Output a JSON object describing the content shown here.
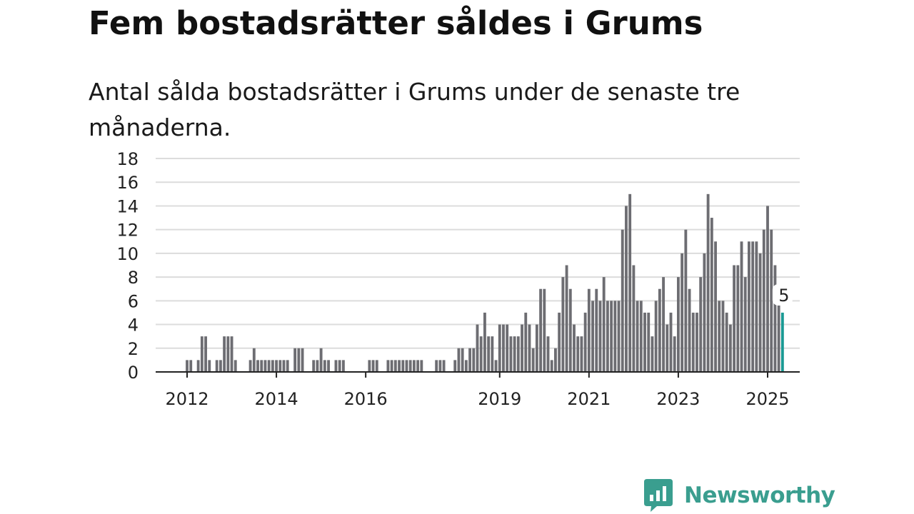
{
  "title": "Fem bostadsrätter såldes i Grums",
  "subtitle": "Antal sålda bostadsrätter i Grums under de senaste tre månaderna.",
  "brand": {
    "name": "Newsworthy",
    "icon": "newsworthy-chart-bubble-icon",
    "color": "#3a9e8f"
  },
  "colors": {
    "bar": "#6d6d72",
    "highlight": "#1a9a94",
    "grid": "#dcdcdc",
    "axis": "#222222"
  },
  "chart_data": {
    "type": "bar",
    "title": "Fem bostadsrätter såldes i Grums",
    "subtitle": "Antal sålda bostadsrätter i Grums under de senaste tre månaderna.",
    "xlabel": "",
    "ylabel": "",
    "x_start": "2012-01",
    "x_end": "2025-01",
    "x_tick_labels": [
      "2012",
      "2014",
      "2016",
      "2019",
      "2021",
      "2023",
      "2025"
    ],
    "y_ticks": [
      0,
      2,
      4,
      6,
      8,
      10,
      12,
      14,
      16,
      18
    ],
    "ylim": [
      0,
      18
    ],
    "grid": true,
    "highlight_last": true,
    "annotation": "5",
    "values": [
      1,
      1,
      0,
      1,
      3,
      3,
      1,
      0,
      1,
      1,
      3,
      3,
      3,
      1,
      0,
      0,
      0,
      1,
      2,
      1,
      1,
      1,
      1,
      1,
      1,
      1,
      1,
      1,
      0,
      2,
      2,
      2,
      0,
      0,
      1,
      1,
      2,
      1,
      1,
      0,
      1,
      1,
      1,
      0,
      0,
      0,
      0,
      0,
      0,
      1,
      1,
      1,
      0,
      0,
      1,
      1,
      1,
      1,
      1,
      1,
      1,
      1,
      1,
      1,
      0,
      0,
      0,
      1,
      1,
      1,
      0,
      0,
      1,
      2,
      2,
      1,
      2,
      2,
      4,
      3,
      5,
      3,
      3,
      1,
      4,
      4,
      4,
      3,
      3,
      3,
      4,
      5,
      4,
      2,
      4,
      7,
      7,
      3,
      1,
      2,
      5,
      8,
      9,
      7,
      4,
      3,
      3,
      5,
      7,
      6,
      7,
      6,
      8,
      6,
      6,
      6,
      6,
      12,
      14,
      15,
      9,
      6,
      6,
      5,
      5,
      3,
      6,
      7,
      8,
      4,
      5,
      3,
      8,
      10,
      12,
      7,
      5,
      5,
      8,
      10,
      15,
      13,
      11,
      6,
      6,
      5,
      4,
      9,
      9,
      11,
      8,
      11,
      11,
      11,
      10,
      12,
      14,
      12,
      9,
      6,
      5
    ]
  }
}
